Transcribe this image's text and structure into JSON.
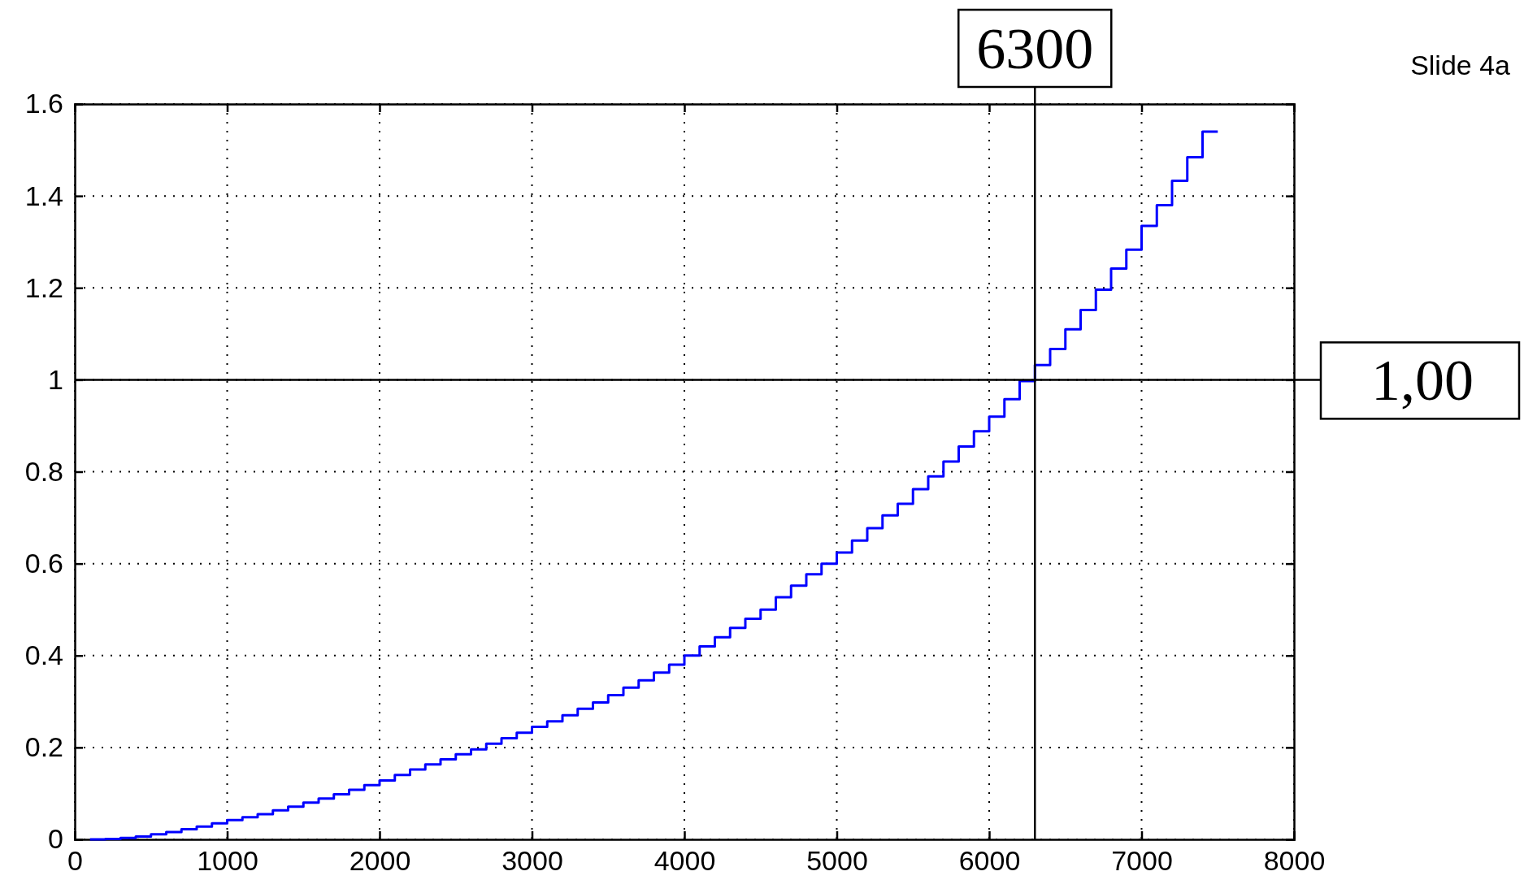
{
  "chart_data": {
    "type": "step",
    "x": [
      100,
      200,
      300,
      400,
      500,
      600,
      700,
      800,
      900,
      1000,
      1100,
      1200,
      1300,
      1400,
      1500,
      1600,
      1700,
      1800,
      1900,
      2000,
      2100,
      2200,
      2300,
      2400,
      2500,
      2600,
      2700,
      2800,
      2900,
      3000,
      3100,
      3200,
      3300,
      3400,
      3500,
      3600,
      3700,
      3800,
      3900,
      4000,
      4100,
      4200,
      4300,
      4400,
      4500,
      4600,
      4700,
      4800,
      4900,
      5000,
      5100,
      5200,
      5300,
      5400,
      5500,
      5600,
      5700,
      5800,
      5900,
      6000,
      6100,
      6200,
      6300,
      6400,
      6500,
      6600,
      6700,
      6800,
      6900,
      7000,
      7100,
      7200,
      7300,
      7400,
      7500
    ],
    "series": [
      {
        "color": "#0000ff",
        "values": [
          0,
          0.001,
          0.003,
          0.006,
          0.011,
          0.016,
          0.022,
          0.028,
          0.035,
          0.042,
          0.048,
          0.055,
          0.063,
          0.071,
          0.08,
          0.089,
          0.098,
          0.108,
          0.118,
          0.128,
          0.14,
          0.152,
          0.163,
          0.174,
          0.185,
          0.196,
          0.208,
          0.22,
          0.232,
          0.245,
          0.257,
          0.27,
          0.284,
          0.298,
          0.314,
          0.33,
          0.346,
          0.363,
          0.38,
          0.4,
          0.42,
          0.44,
          0.46,
          0.48,
          0.5,
          0.527,
          0.552,
          0.577,
          0.6,
          0.624,
          0.65,
          0.677,
          0.705,
          0.73,
          0.762,
          0.79,
          0.822,
          0.855,
          0.888,
          0.92,
          0.958,
          0.997,
          1.032,
          1.067,
          1.11,
          1.152,
          1.196,
          1.242,
          1.283,
          1.335,
          1.38,
          1.433,
          1.484,
          1.54,
          1.54
        ]
      }
    ],
    "xlim": [
      0,
      8000
    ],
    "xticks": [
      0,
      1000,
      2000,
      3000,
      4000,
      5000,
      6000,
      7000,
      8000
    ],
    "ylim": [
      0,
      1.6
    ],
    "yticks": [
      0,
      0.2,
      0.4,
      0.6,
      0.8,
      1,
      1.2,
      1.4,
      1.6
    ],
    "grid": true,
    "line_style": "solid",
    "ref_lines": [
      {
        "axis": "x",
        "value": 6300,
        "label": "6300",
        "color": "#000000"
      },
      {
        "axis": "y",
        "value": 1,
        "label": "1,00",
        "color": "#000000"
      }
    ],
    "annotations": [
      "Slide 4a"
    ]
  }
}
